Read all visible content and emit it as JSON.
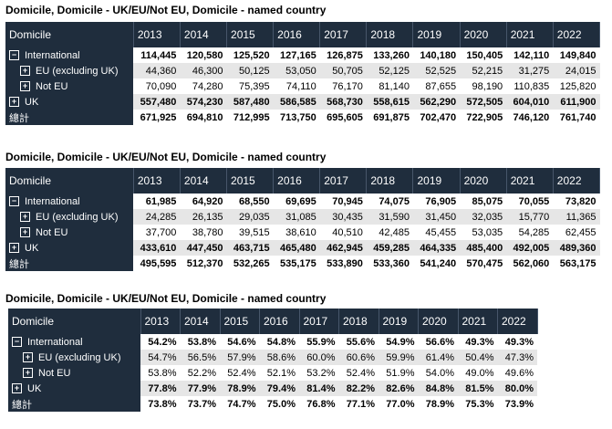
{
  "header_label": "Domicile",
  "years": [
    "2013",
    "2014",
    "2015",
    "2016",
    "2017",
    "2018",
    "2019",
    "2020",
    "2021",
    "2022"
  ],
  "tables": [
    {
      "title": "Domicile, Domicile - UK/EU/Not EU, Domicile - named country",
      "rows": [
        {
          "label": "International",
          "icon": "⊟",
          "values": [
            "114,445",
            "120,580",
            "125,520",
            "127,165",
            "126,875",
            "133,260",
            "140,180",
            "150,405",
            "142,110",
            "149,840"
          ]
        },
        {
          "label": "EU (excluding UK)",
          "icon": "⊞",
          "values": [
            "44,360",
            "46,300",
            "50,125",
            "53,050",
            "50,705",
            "52,125",
            "52,525",
            "52,215",
            "31,275",
            "24,015"
          ]
        },
        {
          "label": "Not EU",
          "icon": "⊞",
          "values": [
            "70,090",
            "74,280",
            "75,395",
            "74,110",
            "76,170",
            "81,140",
            "87,655",
            "98,190",
            "110,835",
            "125,820"
          ]
        },
        {
          "label": "UK",
          "icon": "⊞",
          "values": [
            "557,480",
            "574,230",
            "587,480",
            "586,585",
            "568,730",
            "558,615",
            "562,290",
            "572,505",
            "604,010",
            "611,900"
          ]
        },
        {
          "label": "總計",
          "icon": "",
          "values": [
            "671,925",
            "694,810",
            "712,995",
            "713,750",
            "695,605",
            "691,875",
            "702,470",
            "722,905",
            "746,120",
            "761,740"
          ]
        }
      ]
    },
    {
      "title": "Domicile, Domicile - UK/EU/Not EU, Domicile - named country",
      "rows": [
        {
          "label": "International",
          "icon": "⊟",
          "values": [
            "61,985",
            "64,920",
            "68,550",
            "69,695",
            "70,945",
            "74,075",
            "76,905",
            "85,075",
            "70,055",
            "73,820"
          ]
        },
        {
          "label": "EU (excluding UK)",
          "icon": "⊞",
          "values": [
            "24,285",
            "26,135",
            "29,035",
            "31,085",
            "30,435",
            "31,590",
            "31,450",
            "32,035",
            "15,770",
            "11,365"
          ]
        },
        {
          "label": "Not EU",
          "icon": "⊞",
          "values": [
            "37,700",
            "38,780",
            "39,515",
            "38,610",
            "40,510",
            "42,485",
            "45,455",
            "53,035",
            "54,285",
            "62,455"
          ]
        },
        {
          "label": "UK",
          "icon": "⊞",
          "values": [
            "433,610",
            "447,450",
            "463,715",
            "465,480",
            "462,945",
            "459,285",
            "464,335",
            "485,400",
            "492,005",
            "489,360"
          ]
        },
        {
          "label": "總計",
          "icon": "",
          "values": [
            "495,595",
            "512,370",
            "532,265",
            "535,175",
            "533,890",
            "533,360",
            "541,240",
            "570,475",
            "562,060",
            "563,175"
          ]
        }
      ]
    },
    {
      "title": "Domicile, Domicile - UK/EU/Not EU, Domicile - named country",
      "rows": [
        {
          "label": "International",
          "icon": "⊟",
          "values": [
            "54.2%",
            "53.8%",
            "54.6%",
            "54.8%",
            "55.9%",
            "55.6%",
            "54.9%",
            "56.6%",
            "49.3%",
            "49.3%"
          ]
        },
        {
          "label": "EU (excluding UK)",
          "icon": "⊞",
          "values": [
            "54.7%",
            "56.5%",
            "57.9%",
            "58.6%",
            "60.0%",
            "60.6%",
            "59.9%",
            "61.4%",
            "50.4%",
            "47.3%"
          ]
        },
        {
          "label": "Not EU",
          "icon": "⊞",
          "values": [
            "53.8%",
            "52.2%",
            "52.4%",
            "52.1%",
            "53.2%",
            "52.4%",
            "51.9%",
            "54.0%",
            "49.0%",
            "49.6%"
          ]
        },
        {
          "label": "UK",
          "icon": "⊞",
          "values": [
            "77.8%",
            "77.9%",
            "78.9%",
            "79.4%",
            "81.4%",
            "82.2%",
            "82.6%",
            "84.8%",
            "81.5%",
            "80.0%"
          ]
        },
        {
          "label": "總計",
          "icon": "",
          "values": [
            "73.8%",
            "73.7%",
            "74.7%",
            "75.0%",
            "76.8%",
            "77.1%",
            "77.0%",
            "78.9%",
            "75.3%",
            "73.9%"
          ]
        }
      ]
    }
  ]
}
